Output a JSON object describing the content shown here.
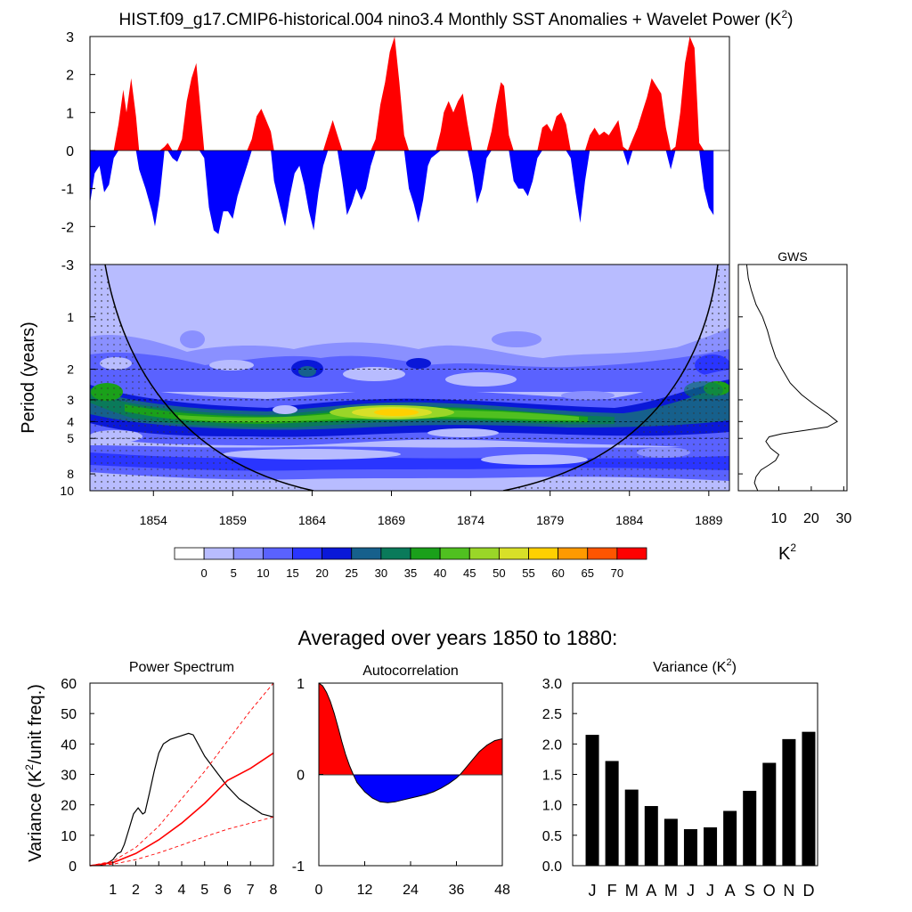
{
  "title": "HIST.f09_g17.CMIP6-historical.004 nino3.4 Monthly SST Anomalies + Wavelet Power (K",
  "title_sup": "2",
  "title_close": ")",
  "subtitle": "Averaged over years 1850 to 1880:",
  "colors": {
    "positive": "#ff0000",
    "negative": "#0000ff",
    "bar": "#000000",
    "significance": "#ff0000"
  },
  "chart_data": [
    {
      "id": "sst",
      "type": "area",
      "x_range": [
        1850,
        1890.3
      ],
      "ylim": [
        -3,
        3
      ],
      "yticks": [
        "3",
        "2",
        "1",
        "0",
        "-1",
        "-2",
        "-3"
      ],
      "yticks_values": [
        3,
        2,
        1,
        0,
        -1,
        -2,
        -3
      ],
      "points": [
        [
          1850.0,
          -1.4
        ],
        [
          1850.3,
          -0.6
        ],
        [
          1850.6,
          -0.4
        ],
        [
          1850.9,
          -1.1
        ],
        [
          1851.2,
          -0.9
        ],
        [
          1851.5,
          -0.2
        ],
        [
          1851.8,
          0.7
        ],
        [
          1852.1,
          1.6
        ],
        [
          1852.3,
          1.0
        ],
        [
          1852.6,
          1.9
        ],
        [
          1852.9,
          0.9
        ],
        [
          1853.1,
          -0.5
        ],
        [
          1853.5,
          -1.0
        ],
        [
          1853.9,
          -1.6
        ],
        [
          1854.1,
          -2.0
        ],
        [
          1854.4,
          -1.2
        ],
        [
          1854.7,
          0.1
        ],
        [
          1854.9,
          0.2
        ],
        [
          1855.2,
          -0.2
        ],
        [
          1855.5,
          -0.3
        ],
        [
          1855.8,
          0.3
        ],
        [
          1856.1,
          1.3
        ],
        [
          1856.4,
          1.9
        ],
        [
          1856.7,
          2.3
        ],
        [
          1856.9,
          1.4
        ],
        [
          1857.2,
          -0.2
        ],
        [
          1857.5,
          -1.5
        ],
        [
          1857.8,
          -2.1
        ],
        [
          1858.1,
          -2.2
        ],
        [
          1858.4,
          -1.6
        ],
        [
          1858.7,
          -1.6
        ],
        [
          1859.0,
          -1.8
        ],
        [
          1859.3,
          -1.2
        ],
        [
          1859.6,
          -0.8
        ],
        [
          1859.9,
          -0.4
        ],
        [
          1860.2,
          0.3
        ],
        [
          1860.5,
          0.9
        ],
        [
          1860.8,
          1.1
        ],
        [
          1861.1,
          0.8
        ],
        [
          1861.4,
          0.5
        ],
        [
          1861.6,
          -0.8
        ],
        [
          1862.0,
          -1.5
        ],
        [
          1862.3,
          -2.0
        ],
        [
          1862.6,
          -1.2
        ],
        [
          1862.9,
          -0.6
        ],
        [
          1863.2,
          -0.4
        ],
        [
          1863.5,
          -0.9
        ],
        [
          1863.8,
          -1.6
        ],
        [
          1864.1,
          -2.1
        ],
        [
          1864.4,
          -1.1
        ],
        [
          1864.7,
          -0.4
        ],
        [
          1865.0,
          0.4
        ],
        [
          1865.3,
          0.8
        ],
        [
          1865.6,
          0.4
        ],
        [
          1865.9,
          -0.8
        ],
        [
          1866.2,
          -1.7
        ],
        [
          1866.5,
          -1.4
        ],
        [
          1866.8,
          -1.0
        ],
        [
          1867.1,
          -1.3
        ],
        [
          1867.4,
          -1.0
        ],
        [
          1867.7,
          -0.4
        ],
        [
          1868.0,
          0.3
        ],
        [
          1868.3,
          1.2
        ],
        [
          1868.6,
          1.8
        ],
        [
          1868.9,
          2.6
        ],
        [
          1869.2,
          3.0
        ],
        [
          1869.5,
          1.8
        ],
        [
          1869.8,
          0.4
        ],
        [
          1870.1,
          -1.0
        ],
        [
          1870.4,
          -1.4
        ],
        [
          1870.7,
          -1.9
        ],
        [
          1871.0,
          -1.3
        ],
        [
          1871.3,
          -0.4
        ],
        [
          1871.5,
          -0.2
        ],
        [
          1871.8,
          -0.1
        ],
        [
          1872.1,
          0.5
        ],
        [
          1872.3,
          1.0
        ],
        [
          1872.6,
          1.3
        ],
        [
          1872.9,
          1.0
        ],
        [
          1873.2,
          1.3
        ],
        [
          1873.5,
          1.5
        ],
        [
          1873.8,
          0.7
        ],
        [
          1874.1,
          -0.6
        ],
        [
          1874.4,
          -1.4
        ],
        [
          1874.7,
          -1.0
        ],
        [
          1875.0,
          -0.2
        ],
        [
          1875.3,
          0.5
        ],
        [
          1875.6,
          1.2
        ],
        [
          1875.9,
          1.8
        ],
        [
          1876.1,
          1.7
        ],
        [
          1876.4,
          0.4
        ],
        [
          1876.7,
          -0.8
        ],
        [
          1877.0,
          -1.0
        ],
        [
          1877.3,
          -1.0
        ],
        [
          1877.6,
          -1.2
        ],
        [
          1877.9,
          -0.8
        ],
        [
          1878.2,
          -0.2
        ],
        [
          1878.5,
          0.6
        ],
        [
          1878.8,
          0.7
        ],
        [
          1879.1,
          0.5
        ],
        [
          1879.4,
          0.9
        ],
        [
          1879.7,
          1.0
        ],
        [
          1880.0,
          0.7
        ],
        [
          1880.3,
          -0.2
        ],
        [
          1880.6,
          -1.1
        ],
        [
          1880.9,
          -1.9
        ],
        [
          1881.2,
          -0.8
        ],
        [
          1881.5,
          0.4
        ],
        [
          1881.8,
          0.6
        ],
        [
          1882.1,
          0.4
        ],
        [
          1882.4,
          0.5
        ],
        [
          1882.7,
          0.4
        ],
        [
          1883.0,
          0.6
        ],
        [
          1883.3,
          0.8
        ],
        [
          1883.6,
          0.1
        ],
        [
          1883.9,
          -0.4
        ],
        [
          1884.2,
          0.3
        ],
        [
          1884.5,
          0.6
        ],
        [
          1884.8,
          1.0
        ],
        [
          1885.1,
          1.4
        ],
        [
          1885.4,
          1.9
        ],
        [
          1885.7,
          1.7
        ],
        [
          1886.0,
          1.5
        ],
        [
          1886.3,
          0.6
        ],
        [
          1886.6,
          -0.5
        ],
        [
          1886.9,
          0.1
        ],
        [
          1887.2,
          1.0
        ],
        [
          1887.5,
          2.3
        ],
        [
          1887.8,
          3.0
        ],
        [
          1888.1,
          2.7
        ],
        [
          1888.4,
          0.2
        ],
        [
          1888.7,
          -1.0
        ],
        [
          1889.0,
          -1.5
        ],
        [
          1889.3,
          -1.7
        ]
      ]
    },
    {
      "id": "wavelet",
      "type": "heatmap",
      "ylabel": "Period (years)",
      "period_range": [
        0.5,
        10
      ],
      "yticks": [
        "1",
        "2",
        "3",
        "4",
        "5",
        "8",
        "10"
      ],
      "yticks_values": [
        1,
        2,
        3,
        4,
        5,
        8,
        10
      ],
      "xticks": [
        "1854",
        "1859",
        "1864",
        "1869",
        "1874",
        "1879",
        "1884",
        "1889"
      ],
      "xticks_values": [
        1854,
        1859,
        1864,
        1869,
        1874,
        1879,
        1884,
        1889
      ],
      "x_range": [
        1850,
        1890.3
      ],
      "dashed_periods": [
        2,
        3,
        4,
        5
      ]
    },
    {
      "id": "colorbar",
      "type": "legend",
      "labels": [
        "0",
        "5",
        "10",
        "15",
        "20",
        "25",
        "30",
        "35",
        "40",
        "45",
        "50",
        "55",
        "60",
        "65",
        "70"
      ],
      "colors": [
        "#ffffff",
        "#b8bcff",
        "#8a90ff",
        "#5a62ff",
        "#2a35ff",
        "#0a18d8",
        "#16608c",
        "#0a7a5a",
        "#1aa01a",
        "#50c020",
        "#9ad628",
        "#d8e028",
        "#ffd000",
        "#ff9a00",
        "#ff5500",
        "#ff0000"
      ]
    },
    {
      "id": "gws",
      "type": "line",
      "title": "GWS",
      "xlabel": "K",
      "xlabel_sup": "2",
      "xticks": [
        "10",
        "20",
        "30"
      ],
      "xticks_values": [
        10,
        20,
        30
      ],
      "x_range": [
        0,
        31
      ],
      "points": [
        [
          0.1,
          0.5
        ],
        [
          0.6,
          0.6
        ],
        [
          1.5,
          0.7
        ],
        [
          3,
          0.85
        ],
        [
          5,
          1.0
        ],
        [
          6.5,
          1.2
        ],
        [
          7.5,
          1.4
        ],
        [
          9,
          1.7
        ],
        [
          11,
          2.0
        ],
        [
          13.5,
          2.4
        ],
        [
          17,
          2.8
        ],
        [
          21,
          3.2
        ],
        [
          25,
          3.6
        ],
        [
          28,
          4.0
        ],
        [
          25,
          4.3
        ],
        [
          18,
          4.5
        ],
        [
          11,
          4.7
        ],
        [
          7,
          4.9
        ],
        [
          6,
          5.2
        ],
        [
          7.5,
          5.7
        ],
        [
          10,
          6.2
        ],
        [
          9,
          6.7
        ],
        [
          7,
          7.1
        ],
        [
          4.5,
          7.6
        ],
        [
          3,
          8.3
        ],
        [
          2.5,
          9.0
        ],
        [
          3.5,
          10
        ]
      ]
    },
    {
      "id": "power",
      "type": "line",
      "title": "Power Spectrum",
      "ylabel": "Variance (K",
      "ylabel_sup": "2",
      "ylabel_close": "/unit freq.)",
      "xlim": [
        0,
        8
      ],
      "ylim": [
        0,
        60
      ],
      "xticks": [
        "1",
        "2",
        "3",
        "4",
        "5",
        "6",
        "7",
        "8"
      ],
      "xticks_values": [
        1,
        2,
        3,
        4,
        5,
        6,
        7,
        8
      ],
      "yticks": [
        "0",
        "10",
        "20",
        "30",
        "40",
        "50",
        "60"
      ],
      "yticks_values": [
        0,
        10,
        20,
        30,
        40,
        50,
        60
      ],
      "series": [
        {
          "name": "spectrum",
          "style": "black",
          "points": [
            [
              0,
              0
            ],
            [
              0.5,
              0.2
            ],
            [
              0.8,
              1
            ],
            [
              1.0,
              2
            ],
            [
              1.2,
              4
            ],
            [
              1.35,
              4.5
            ],
            [
              1.5,
              7
            ],
            [
              1.7,
              12
            ],
            [
              1.9,
              17
            ],
            [
              2.1,
              19
            ],
            [
              2.3,
              17
            ],
            [
              2.4,
              17.5
            ],
            [
              2.6,
              24
            ],
            [
              2.8,
              31
            ],
            [
              3.0,
              37
            ],
            [
              3.2,
              40
            ],
            [
              3.5,
              41.5
            ],
            [
              3.9,
              42.5
            ],
            [
              4.3,
              43.5
            ],
            [
              4.5,
              43
            ],
            [
              5.0,
              36
            ],
            [
              5.5,
              31
            ],
            [
              6.0,
              26
            ],
            [
              6.5,
              22
            ],
            [
              7.0,
              19.5
            ],
            [
              7.5,
              17
            ],
            [
              8.0,
              16
            ]
          ]
        },
        {
          "name": "red-noise",
          "style": "red-solid",
          "points": [
            [
              0,
              0
            ],
            [
              1,
              1
            ],
            [
              2,
              4
            ],
            [
              3,
              8.5
            ],
            [
              4,
              14
            ],
            [
              5,
              20.5
            ],
            [
              6,
              28
            ],
            [
              7,
              32
            ],
            [
              8,
              37
            ]
          ]
        },
        {
          "name": "upper-bound",
          "style": "red-dashed",
          "points": [
            [
              0,
              0
            ],
            [
              1,
              1.5
            ],
            [
              2,
              6
            ],
            [
              3,
              13
            ],
            [
              4,
              22
            ],
            [
              5,
              31
            ],
            [
              6,
              41
            ],
            [
              7,
              51
            ],
            [
              8,
              61
            ]
          ]
        },
        {
          "name": "lower-bound",
          "style": "red-dashed",
          "points": [
            [
              0,
              0
            ],
            [
              1,
              0.5
            ],
            [
              2,
              2
            ],
            [
              3,
              4.2
            ],
            [
              4,
              6.8
            ],
            [
              5,
              9.5
            ],
            [
              6,
              12
            ],
            [
              7,
              14
            ],
            [
              8,
              16
            ]
          ]
        }
      ]
    },
    {
      "id": "autocorr",
      "type": "area",
      "title": "Autocorrelation",
      "xlim": [
        0,
        48
      ],
      "ylim": [
        -1,
        1
      ],
      "xticks": [
        "0",
        "12",
        "24",
        "36",
        "48"
      ],
      "xticks_values": [
        0,
        12,
        24,
        36,
        48
      ],
      "yticks": [
        "1",
        "0",
        "-1"
      ],
      "yticks_values": [
        1,
        0,
        -1
      ],
      "points": [
        [
          0,
          1
        ],
        [
          1,
          0.97
        ],
        [
          2,
          0.9
        ],
        [
          3,
          0.8
        ],
        [
          4,
          0.67
        ],
        [
          5,
          0.52
        ],
        [
          6,
          0.36
        ],
        [
          7,
          0.22
        ],
        [
          8,
          0.1
        ],
        [
          9,
          0
        ],
        [
          10,
          -0.09
        ],
        [
          12,
          -0.19
        ],
        [
          14,
          -0.26
        ],
        [
          16,
          -0.3
        ],
        [
          18,
          -0.31
        ],
        [
          20,
          -0.3
        ],
        [
          22,
          -0.28
        ],
        [
          24,
          -0.26
        ],
        [
          26,
          -0.24
        ],
        [
          28,
          -0.22
        ],
        [
          30,
          -0.19
        ],
        [
          32,
          -0.15
        ],
        [
          34,
          -0.1
        ],
        [
          36,
          -0.04
        ],
        [
          37,
          0
        ],
        [
          38,
          0.05
        ],
        [
          40,
          0.15
        ],
        [
          42,
          0.25
        ],
        [
          44,
          0.32
        ],
        [
          46,
          0.37
        ],
        [
          48,
          0.39
        ]
      ]
    },
    {
      "id": "variance",
      "type": "bar",
      "title": "Variance (K",
      "title_sup": "2",
      "title_close": ")",
      "ylim": [
        0,
        3
      ],
      "yticks": [
        "0.0",
        "0.5",
        "1.0",
        "1.5",
        "2.0",
        "2.5",
        "3.0"
      ],
      "yticks_values": [
        0,
        0.5,
        1,
        1.5,
        2,
        2.5,
        3
      ],
      "categories": [
        "J",
        "F",
        "M",
        "A",
        "M",
        "J",
        "J",
        "A",
        "S",
        "O",
        "N",
        "D"
      ],
      "values": [
        2.15,
        1.72,
        1.25,
        0.98,
        0.77,
        0.6,
        0.63,
        0.9,
        1.23,
        1.69,
        2.08,
        2.2
      ]
    }
  ]
}
